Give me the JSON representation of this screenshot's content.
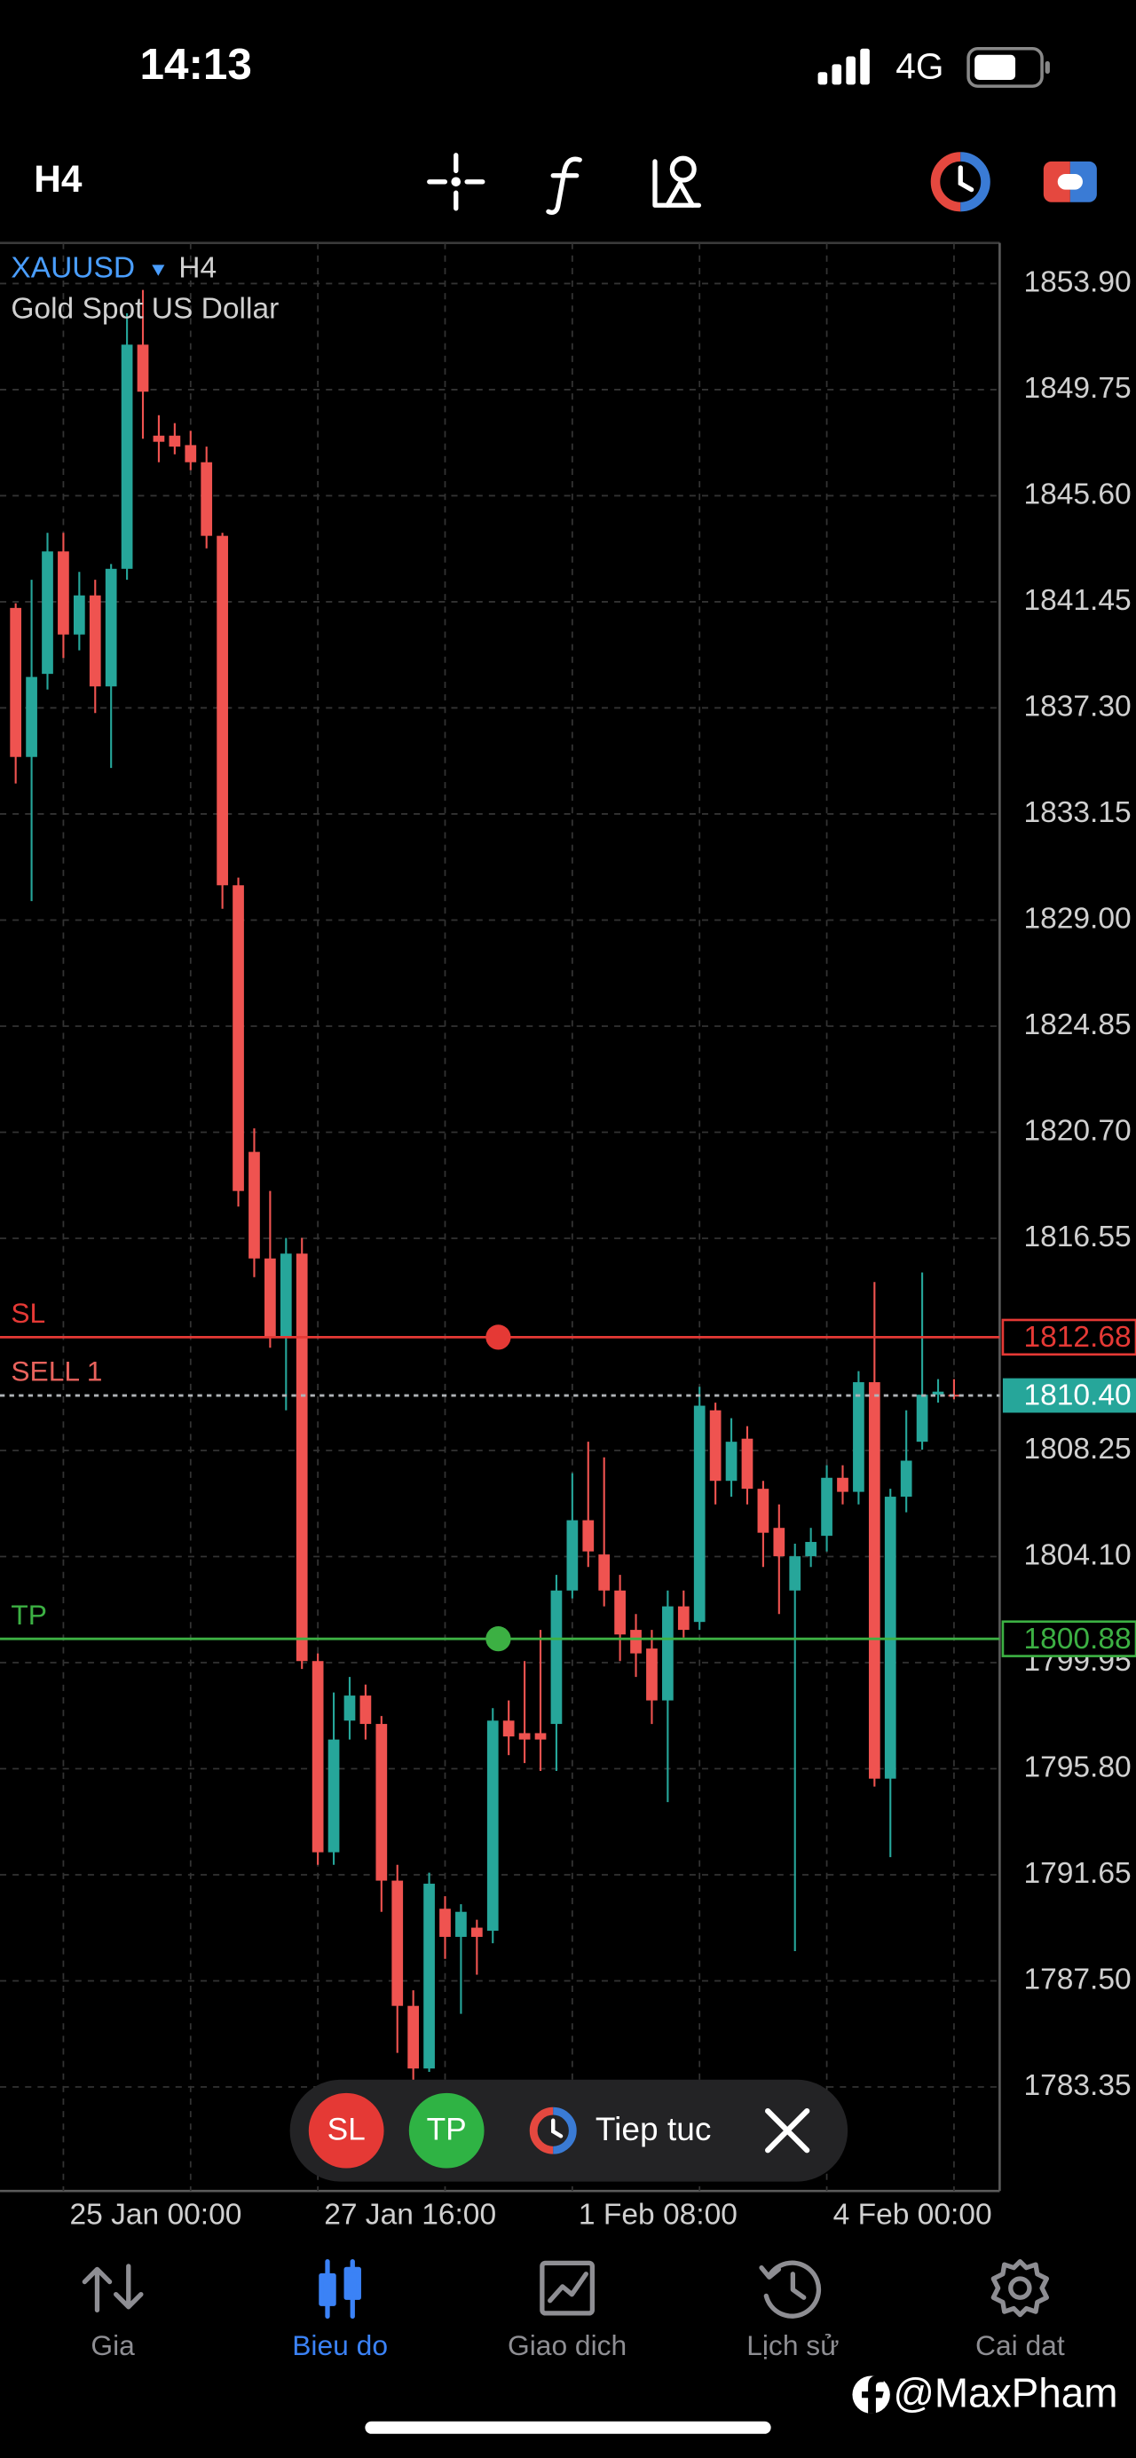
{
  "status_bar": {
    "time": "14:13",
    "network": "4G"
  },
  "toolbar": {
    "timeframe": "H4"
  },
  "chart_data": {
    "type": "candlestick",
    "symbol": "XAUUSD",
    "timeframe": "H4",
    "description": "Gold Spot US Dollar",
    "categories": [
      null,
      null,
      null,
      "25 Jan 00:00",
      null,
      null,
      null,
      null,
      null,
      null,
      null,
      null,
      null,
      null,
      null,
      null,
      null,
      null,
      null,
      "27 Jan 16:00",
      null,
      null,
      null,
      null,
      null,
      null,
      null,
      null,
      null,
      null,
      null,
      null,
      null,
      null,
      null,
      "1 Feb 08:00",
      null,
      null,
      null,
      null,
      null,
      null,
      null,
      null,
      null,
      null,
      null,
      null,
      null,
      null,
      null,
      "4 Feb 00:00",
      null,
      null,
      null,
      null,
      null,
      null,
      null,
      null
    ],
    "open": [
      1841.21,
      1835.38,
      1838.63,
      1843.42,
      1840.17,
      1841.7,
      1838.14,
      1842.74,
      1851.51,
      1847.95,
      1847.95,
      1847.58,
      1846.91,
      1844.03,
      1830.36,
      1819.93,
      1815.76,
      1812.7,
      1815.95,
      1800.01,
      1792.53,
      1797.68,
      1798.66,
      1797.55,
      1791.42,
      1786.52,
      1784.07,
      1790.32,
      1789.22,
      1789.58,
      1789.46,
      1797.68,
      1797.19,
      1797.19,
      1797.55,
      1802.77,
      1805.52,
      1804.18,
      1802.77,
      1801.23,
      1800.5,
      1798.47,
      1802.15,
      1801.54,
      1809.82,
      1807.06,
      1808.71,
      1806.75,
      1805.22,
      1802.77,
      1804.11,
      1804.91,
      1807.18,
      1806.63,
      1810.92,
      1795.41,
      1806.44,
      1808.59,
      1810.43,
      1810.43
    ],
    "high": [
      1841.39,
      1842.31,
      1844.15,
      1844.15,
      1842.62,
      1842.31,
      1842.93,
      1852.74,
      1853.65,
      1848.75,
      1848.44,
      1848.14,
      1847.52,
      1844.15,
      1830.66,
      1820.85,
      1818.4,
      1816.56,
      1816.56,
      1800.31,
      1798.78,
      1799.39,
      1799.09,
      1797.86,
      1792.04,
      1787.13,
      1791.73,
      1790.81,
      1790.5,
      1789.89,
      1798.17,
      1798.47,
      1800.01,
      1801.23,
      1803.38,
      1807.36,
      1808.59,
      1807.98,
      1803.38,
      1801.85,
      1801.23,
      1802.77,
      1802.77,
      1810.74,
      1810.12,
      1809.51,
      1809.2,
      1807.06,
      1806.14,
      1804.6,
      1805.22,
      1807.67,
      1807.67,
      1811.35,
      1814.84,
      1806.75,
      1809.82,
      1815.21,
      1811.04,
      1811.04
    ],
    "low": [
      1834.34,
      1829.74,
      1838.02,
      1839.25,
      1839.55,
      1837.1,
      1834.95,
      1842.31,
      1847.83,
      1846.91,
      1847.22,
      1846.6,
      1843.54,
      1829.44,
      1817.79,
      1815.03,
      1812.27,
      1809.82,
      1799.7,
      1792.04,
      1792.04,
      1796.94,
      1796.94,
      1790.2,
      1784.68,
      1783.45,
      1783.94,
      1788.36,
      1786.21,
      1787.74,
      1788.97,
      1796.33,
      1796.02,
      1795.71,
      1795.71,
      1802.46,
      1803.69,
      1802.15,
      1800.01,
      1799.39,
      1797.55,
      1794.49,
      1800.93,
      1801.23,
      1806.14,
      1806.44,
      1806.14,
      1803.69,
      1801.85,
      1788.66,
      1803.69,
      1804.3,
      1806.14,
      1806.14,
      1795.1,
      1792.34,
      1805.83,
      1808.28,
      1810.12,
      1810.25
    ],
    "close": [
      1835.38,
      1838.51,
      1843.42,
      1840.17,
      1841.7,
      1838.14,
      1842.74,
      1851.51,
      1849.67,
      1847.71,
      1847.52,
      1846.91,
      1844.03,
      1830.36,
      1818.4,
      1815.76,
      1812.7,
      1815.95,
      1800.01,
      1792.53,
      1796.94,
      1798.66,
      1797.55,
      1791.42,
      1786.52,
      1784.07,
      1791.3,
      1789.22,
      1790.2,
      1789.22,
      1797.68,
      1797.06,
      1796.94,
      1796.94,
      1802.77,
      1805.52,
      1804.3,
      1802.77,
      1801.05,
      1800.31,
      1798.47,
      1802.15,
      1801.23,
      1810.0,
      1807.06,
      1808.59,
      1806.75,
      1805.03,
      1804.11,
      1804.11,
      1804.67,
      1807.18,
      1806.63,
      1810.92,
      1795.41,
      1806.44,
      1807.85,
      1810.43,
      1810.55,
      1810.4
    ],
    "up_color": "#26a69a",
    "down_color": "#ef5350",
    "ylim": [
      1779.28,
      1855.49
    ],
    "yticks": [
      {
        "value": 1853.9,
        "label": "1853.90"
      },
      1849.75,
      {
        "value": 1845.6,
        "label": "1845.60"
      },
      1841.45,
      {
        "value": 1837.3,
        "label": "1837.30"
      },
      1833.15,
      {
        "value": 1829,
        "label": "1829.00"
      },
      1824.85,
      {
        "value": 1820.7,
        "label": "1820.70"
      },
      1816.55,
      1808.25,
      {
        "value": 1804.1,
        "label": "1804.10"
      },
      1799.95,
      {
        "value": 1795.8,
        "label": "1795.80"
      },
      1791.65,
      {
        "value": 1787.5,
        "label": "1787.50"
      },
      1783.35
    ],
    "grid": true,
    "levels": [
      {
        "name": "SL",
        "value": 1812.68,
        "color": "#e53935",
        "marker": true
      },
      {
        "name": "SELL 1",
        "value": 1810.4,
        "value_label": "1810.40",
        "color": "#e8625c",
        "line_color": "#b0b4b8",
        "tag_color": "#26a69a",
        "dashed": true
      },
      {
        "name": "TP",
        "value": 1800.88,
        "color": "#3cb043",
        "marker": true
      }
    ]
  },
  "order_bar": {
    "sl": "SL",
    "tp": "TP",
    "action": "Tiep tuc"
  },
  "nav": [
    "Gia",
    "Bieu do",
    "Giao dich",
    "Lịch sử",
    "Cai dat"
  ],
  "watermark": "@MaxPham"
}
